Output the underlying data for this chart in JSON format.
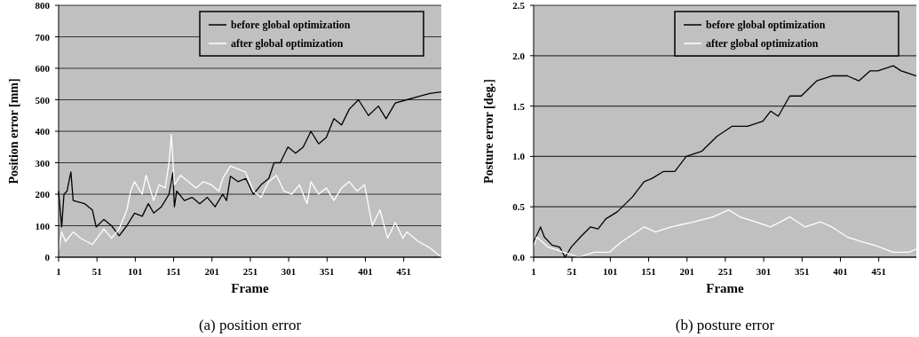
{
  "chart_data": [
    {
      "type": "line",
      "title": "(a) position error",
      "xlabel": "Frame",
      "ylabel": "Position error [mm]",
      "xlim": [
        1,
        500
      ],
      "xticks": [
        1,
        51,
        101,
        151,
        201,
        251,
        301,
        351,
        401,
        451
      ],
      "ylim": [
        0,
        800
      ],
      "yticks": [
        0,
        100,
        200,
        300,
        400,
        500,
        600,
        700,
        800
      ],
      "grid": "y",
      "legend": "top right",
      "marker": "none",
      "line_style": "solid",
      "series": [
        {
          "name": "before global optimization",
          "color": "#000000",
          "x": [
            1,
            5,
            8,
            12,
            17,
            20,
            35,
            45,
            50,
            60,
            70,
            80,
            90,
            100,
            110,
            118,
            125,
            135,
            145,
            150,
            152,
            155,
            165,
            175,
            185,
            195,
            205,
            215,
            220,
            222,
            225,
            235,
            245,
            255,
            265,
            275,
            282,
            290,
            300,
            310,
            320,
            330,
            340,
            350,
            360,
            370,
            380,
            392,
            405,
            418,
            428,
            440,
            455,
            470,
            485,
            500
          ],
          "values": [
            210,
            96,
            200,
            210,
            271,
            180,
            170,
            150,
            96,
            120,
            100,
            68,
            100,
            140,
            130,
            170,
            140,
            160,
            200,
            268,
            160,
            210,
            180,
            190,
            170,
            190,
            160,
            200,
            180,
            210,
            257,
            240,
            250,
            200,
            230,
            250,
            300,
            300,
            350,
            330,
            350,
            400,
            360,
            380,
            440,
            420,
            470,
            500,
            450,
            480,
            440,
            490,
            500,
            510,
            520,
            525
          ]
        },
        {
          "name": "after global optimization",
          "color": "#ffffff",
          "x": [
            1,
            5,
            10,
            20,
            30,
            45,
            60,
            70,
            80,
            90,
            95,
            100,
            110,
            115,
            125,
            132,
            140,
            145,
            148,
            152,
            160,
            170,
            180,
            190,
            200,
            210,
            215,
            225,
            235,
            245,
            255,
            265,
            275,
            285,
            295,
            305,
            315,
            325,
            330,
            340,
            350,
            360,
            370,
            380,
            390,
            400,
            410,
            420,
            430,
            440,
            450,
            455,
            470,
            485,
            500
          ],
          "values": [
            20,
            80,
            50,
            80,
            60,
            40,
            90,
            60,
            90,
            150,
            210,
            240,
            200,
            260,
            180,
            230,
            220,
            300,
            390,
            230,
            260,
            240,
            220,
            240,
            230,
            210,
            250,
            290,
            280,
            270,
            210,
            190,
            240,
            260,
            210,
            200,
            230,
            170,
            240,
            200,
            220,
            180,
            220,
            240,
            210,
            230,
            100,
            150,
            60,
            110,
            60,
            80,
            50,
            30,
            0
          ]
        }
      ]
    },
    {
      "type": "line",
      "title": "(b) posture error",
      "xlabel": "Frame",
      "ylabel": "Posture error [deg.]",
      "xlim": [
        1,
        500
      ],
      "xticks": [
        1,
        51,
        101,
        151,
        201,
        251,
        301,
        351,
        401,
        451
      ],
      "ylim": [
        0,
        2.5
      ],
      "yticks": [
        {
          "value": 0,
          "label": "0.0"
        },
        {
          "value": 0.5,
          "label": "0.5"
        },
        {
          "value": 1,
          "label": "1.0"
        },
        {
          "value": 1.5,
          "label": "1.5"
        },
        {
          "value": 2,
          "label": "2.0"
        },
        {
          "value": 2.5,
          "label": "2.5"
        }
      ],
      "grid": "y",
      "legend": "top right",
      "marker": "none",
      "line_style": "solid",
      "series": [
        {
          "name": "before global optimization",
          "color": "#000000",
          "x": [
            1,
            10,
            15,
            25,
            35,
            42,
            50,
            62,
            75,
            85,
            95,
            110,
            130,
            145,
            155,
            170,
            185,
            200,
            220,
            240,
            260,
            280,
            300,
            310,
            320,
            335,
            350,
            370,
            390,
            410,
            425,
            440,
            450,
            470,
            480,
            500
          ],
          "values": [
            0.15,
            0.3,
            0.2,
            0.12,
            0.1,
            0,
            0.1,
            0.2,
            0.3,
            0.28,
            0.38,
            0.45,
            0.6,
            0.75,
            0.78,
            0.85,
            0.85,
            1,
            1.05,
            1.2,
            1.3,
            1.3,
            1.35,
            1.45,
            1.4,
            1.6,
            1.6,
            1.75,
            1.8,
            1.8,
            1.75,
            1.85,
            1.85,
            1.9,
            1.85,
            1.8
          ]
        },
        {
          "name": "after global optimization",
          "color": "#ffffff",
          "x": [
            1,
            5,
            20,
            40,
            60,
            80,
            100,
            115,
            145,
            160,
            180,
            210,
            235,
            255,
            270,
            290,
            310,
            335,
            355,
            375,
            390,
            410,
            430,
            445,
            470,
            490,
            500
          ],
          "values": [
            0.1,
            0.2,
            0.1,
            0.05,
            0,
            0.05,
            0.05,
            0.15,
            0.3,
            0.25,
            0.3,
            0.35,
            0.4,
            0.47,
            0.4,
            0.35,
            0.3,
            0.4,
            0.3,
            0.35,
            0.3,
            0.2,
            0.15,
            0.12,
            0.05,
            0.05,
            0.08
          ]
        }
      ]
    }
  ]
}
